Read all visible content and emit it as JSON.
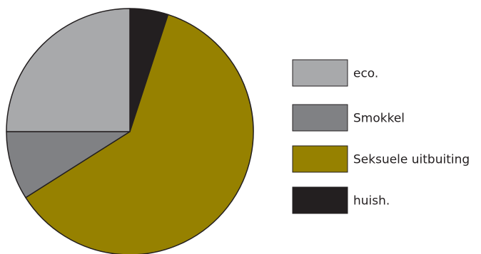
{
  "chart_data": {
    "type": "pie",
    "legend_position": "right",
    "slices": [
      {
        "label": "eco.",
        "value": 25,
        "color": "#a8a9ab"
      },
      {
        "label": "Smokkel",
        "value": 9,
        "color": "#808184"
      },
      {
        "label": "Seksuele uitbuiting",
        "value": 61,
        "color": "#968100"
      },
      {
        "label": "huish.",
        "value": 5,
        "color": "#231f20"
      }
    ]
  }
}
